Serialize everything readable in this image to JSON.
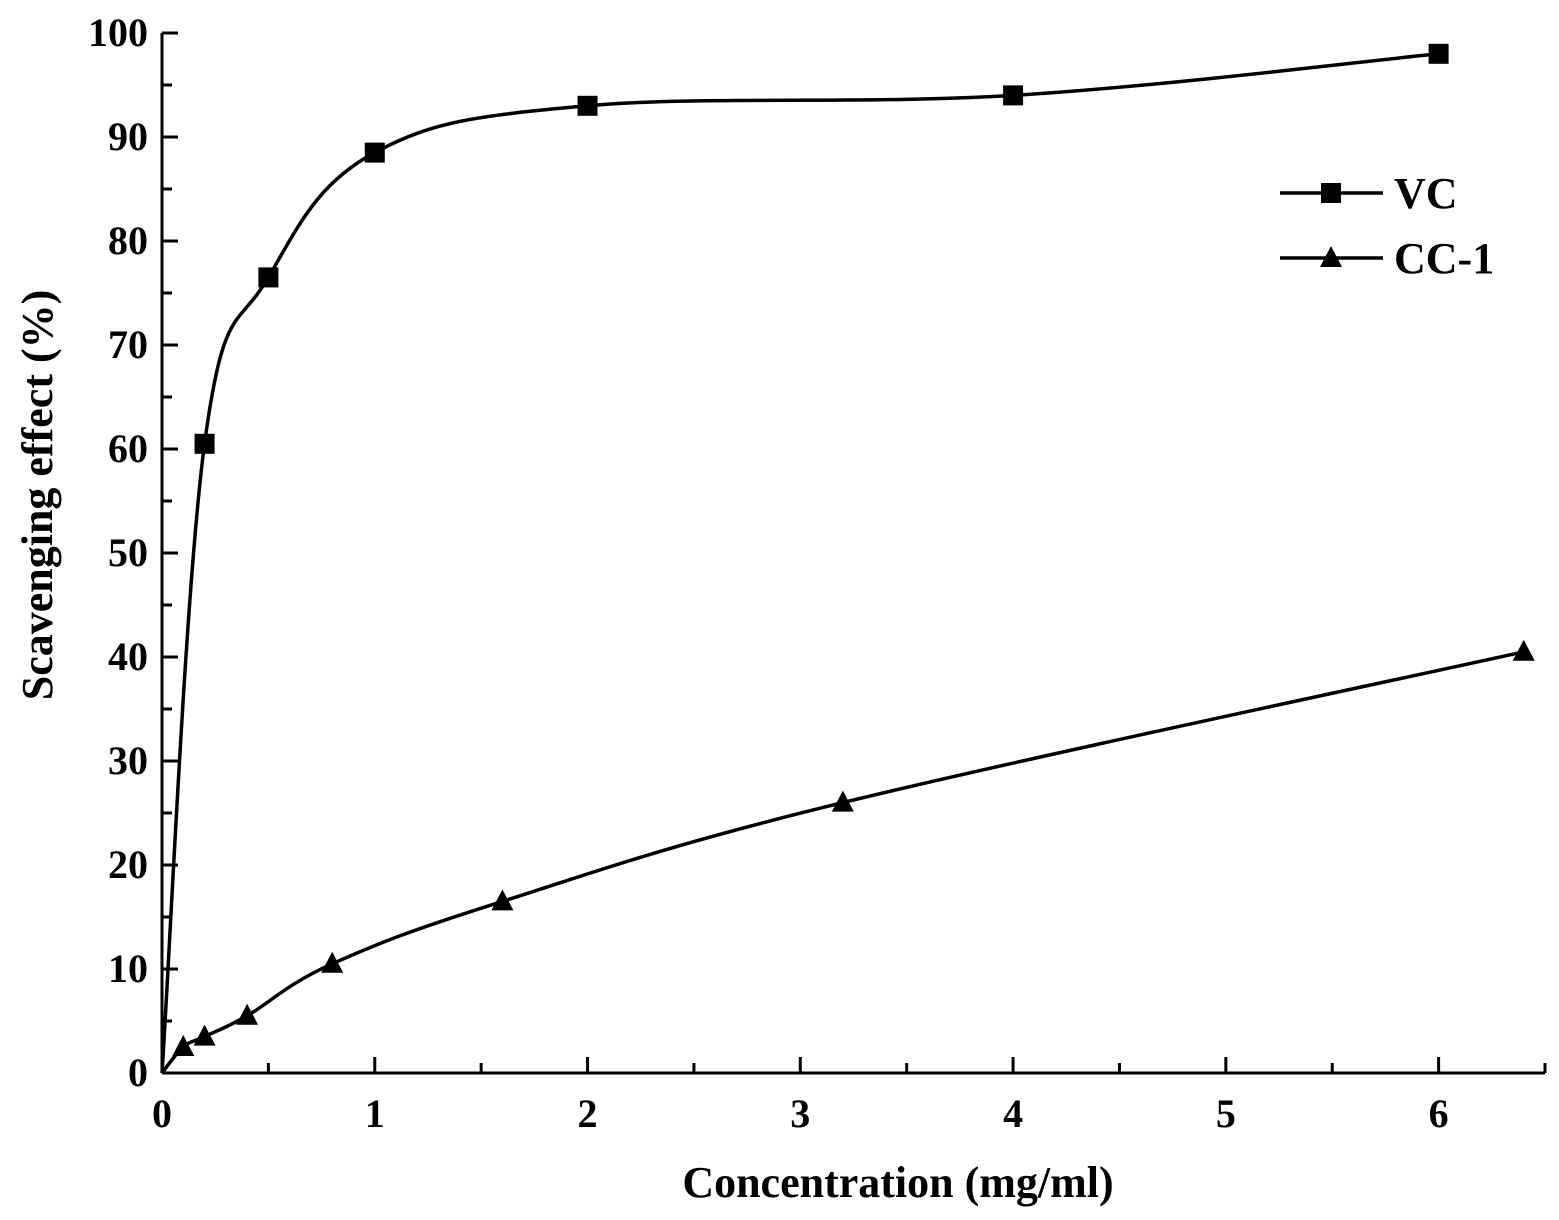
{
  "chart_data": {
    "type": "line",
    "title": "",
    "xlabel": "Concentration (mg/ml)",
    "ylabel": "Scavenging effect (%)",
    "xlim": [
      0,
      6.5
    ],
    "ylim": [
      0,
      100
    ],
    "x_ticks": [
      "0",
      "1",
      "2",
      "3",
      "4",
      "5",
      "6"
    ],
    "y_ticks": [
      "0",
      "10",
      "20",
      "30",
      "40",
      "50",
      "60",
      "70",
      "80",
      "90",
      "100"
    ],
    "grid": false,
    "legend_position": "top-right",
    "series": [
      {
        "name": "VC",
        "marker": "square",
        "color": "#000000",
        "x": [
          0,
          0.2,
          0.5,
          1,
          2,
          4,
          6
        ],
        "y": [
          0,
          60.5,
          76.5,
          88.5,
          93,
          94,
          98
        ]
      },
      {
        "name": "CC-1",
        "marker": "triangle",
        "color": "#000000",
        "x": [
          0,
          0.1,
          0.2,
          0.4,
          0.8,
          1.6,
          3.2,
          6.4
        ],
        "y": [
          0,
          2.5,
          3.5,
          5.5,
          10.5,
          16.5,
          26,
          40.5
        ]
      }
    ]
  }
}
